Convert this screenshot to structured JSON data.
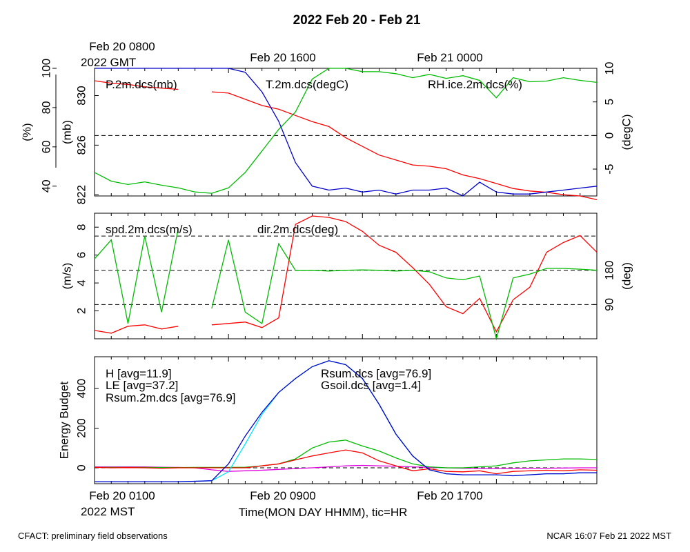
{
  "title": "2022 Feb 20 - Feb 21",
  "top_time_labels": {
    "left_line1": "Feb 20 0800",
    "left_line2": "2022 GMT",
    "mid": "Feb 20 1600",
    "right": "Feb 21 0000"
  },
  "bottom_time_labels": {
    "left_line1": "Feb 20 0100",
    "left_line2": "2022 MST",
    "mid": "Feb 20 0900",
    "right": "Feb 20 1700"
  },
  "xlabel": "Time(MON DAY HHMM), tic=HR",
  "footer_left": "CFACT: preliminary field observations",
  "footer_right": "NCAR 16:07 Feb 21 2022 MST",
  "colors": {
    "red": "#ff0000",
    "green": "#00bb00",
    "blue": "#0000cc",
    "cyan": "#00e5ff",
    "magenta": "#dd00dd",
    "dashed": "#000000"
  },
  "chart_data": [
    {
      "type": "line",
      "panel": "top",
      "x_hours_mst": [
        1,
        2,
        3,
        4,
        5,
        6,
        7,
        8,
        9,
        10,
        11,
        12,
        13,
        14,
        15,
        16,
        17,
        18,
        19,
        20,
        21,
        22,
        23,
        24,
        25,
        26,
        27,
        28,
        29,
        30,
        31
      ],
      "series": [
        {
          "name": "P.2m.dcs(mb)",
          "color": "red",
          "axis": "mb",
          "values": [
            831.2,
            831.0,
            830.9,
            830.7,
            830.6,
            830.5,
            null,
            830.3,
            830.2,
            829.7,
            829.2,
            828.9,
            828.4,
            827.9,
            827.5,
            826.6,
            825.9,
            825.2,
            824.8,
            824.4,
            824.3,
            824.1,
            823.6,
            823.3,
            822.9,
            822.5,
            822.3,
            822.2,
            822.0,
            821.9,
            821.6
          ]
        },
        {
          "name": "T.2m.dcs(degC)",
          "color": "green",
          "axis": "degC",
          "values": [
            -5.5,
            -6.8,
            -7.3,
            -6.9,
            -7.4,
            -7.8,
            -8.4,
            -8.6,
            -7.8,
            -5.5,
            -2.3,
            0.9,
            3.5,
            8.4,
            10.0,
            10.0,
            9.5,
            9.5,
            9.2,
            8.6,
            9.1,
            8.5,
            8.9,
            8.2,
            5.6,
            8.6,
            8.0,
            8.1,
            8.6,
            8.2,
            7.9
          ]
        },
        {
          "name": "RH.ice.2m.dcs(%)",
          "color": "blue",
          "axis": "pct",
          "values": [
            100,
            100,
            100,
            100,
            100,
            100,
            100,
            100,
            100,
            98,
            88,
            73,
            52,
            40,
            38,
            39,
            37,
            38,
            36,
            38,
            38,
            39,
            35,
            42,
            37,
            36,
            36,
            37,
            38,
            39,
            40
          ]
        }
      ],
      "y_axes": {
        "pct": {
          "label": "(%)",
          "ticks": [
            40,
            60,
            80,
            100
          ],
          "ylim": [
            35,
            100
          ]
        },
        "mb": {
          "label": "(mb)",
          "ticks": [
            822,
            826,
            830
          ],
          "ylim": [
            821.9,
            832.2
          ]
        },
        "degC": {
          "label": "(degC)",
          "ticks": [
            -5,
            0,
            5,
            10
          ],
          "ylim": [
            -9,
            10
          ]
        }
      },
      "reference_line": {
        "axis": "degC",
        "value": 0
      }
    },
    {
      "type": "line",
      "panel": "middle",
      "x_hours_mst": [
        1,
        2,
        3,
        4,
        5,
        6,
        7,
        8,
        9,
        10,
        11,
        12,
        13,
        14,
        15,
        16,
        17,
        18,
        19,
        20,
        21,
        22,
        23,
        24,
        25,
        26,
        27,
        28,
        29,
        30,
        31
      ],
      "series": [
        {
          "name": "spd.2m.dcs(m/s)",
          "color": "red",
          "axis": "ms",
          "values": [
            0.6,
            0.4,
            0.9,
            1.0,
            0.7,
            0.9,
            null,
            1.0,
            1.1,
            1.2,
            0.8,
            1.5,
            8.2,
            8.8,
            8.7,
            8.4,
            7.7,
            6.7,
            6.2,
            5.1,
            3.9,
            2.3,
            1.8,
            2.9,
            0.5,
            2.8,
            3.7,
            6.2,
            6.9,
            7.4,
            6.2
          ]
        },
        {
          "name": "dir.2m.dcs(deg)",
          "color": "green",
          "axis": "deg",
          "values": [
            210,
            260,
            40,
            270,
            70,
            290,
            null,
            80,
            260,
            70,
            40,
            250,
            180,
            180,
            178,
            180,
            181,
            180,
            178,
            180,
            176,
            160,
            155,
            165,
            0,
            160,
            170,
            185,
            185,
            183,
            180
          ]
        }
      ],
      "y_axes": {
        "ms": {
          "label": "(m/s)",
          "ticks": [
            2,
            4,
            6,
            8
          ],
          "ylim": [
            0,
            9
          ]
        },
        "deg": {
          "label": "(deg)",
          "ticks": [
            90,
            180
          ],
          "ylim": [
            0,
            330
          ]
        }
      },
      "reference_lines": [
        {
          "axis": "deg",
          "value": 90
        },
        {
          "axis": "deg",
          "value": 180
        },
        {
          "axis": "deg",
          "value": 270
        }
      ]
    },
    {
      "type": "line",
      "panel": "bottom",
      "ylabel": "Energy Budget",
      "ylim": [
        -80,
        560
      ],
      "yticks": [
        0,
        200,
        400
      ],
      "reference_line": {
        "value": 0
      },
      "x_hours_mst": [
        1,
        2,
        3,
        4,
        5,
        6,
        7,
        8,
        9,
        10,
        11,
        12,
        13,
        14,
        15,
        16,
        17,
        18,
        19,
        20,
        21,
        22,
        23,
        24,
        25,
        26,
        27,
        28,
        29,
        30,
        31
      ],
      "series": [
        {
          "name": "H",
          "legend": "H [avg=11.9]",
          "color": "red",
          "values": [
            2,
            0,
            1,
            0,
            -2,
            0,
            0,
            0,
            0,
            0,
            10,
            20,
            40,
            60,
            75,
            90,
            75,
            35,
            10,
            -15,
            -5,
            -18,
            -20,
            -15,
            -30,
            -18,
            -15,
            -12,
            -15,
            -10,
            -12
          ]
        },
        {
          "name": "LE",
          "legend": "LE [avg=37.2]",
          "color": "green",
          "values": [
            2,
            2,
            2,
            2,
            1,
            1,
            2,
            2,
            2,
            3,
            10,
            20,
            45,
            100,
            130,
            140,
            110,
            85,
            50,
            20,
            5,
            0,
            0,
            5,
            10,
            25,
            35,
            40,
            45,
            45,
            42
          ]
        },
        {
          "name": "Rsum.2m.dcs",
          "legend": "Rsum.2m.dcs [avg=76.9]",
          "color": "blue",
          "values": [
            -70,
            -70,
            -70,
            -70,
            -70,
            -70,
            -68,
            -65,
            20,
            160,
            280,
            380,
            450,
            510,
            540,
            520,
            450,
            320,
            170,
            60,
            -10,
            -30,
            -35,
            -35,
            -35,
            -40,
            -35,
            -30,
            -30,
            -25,
            -25
          ]
        },
        {
          "name": "Rsum.dcs",
          "legend": "Rsum.dcs [avg=76.9]",
          "color": "cyan",
          "values": [
            -70,
            -70,
            -70,
            -70,
            -70,
            -70,
            -68,
            -65,
            -20,
            120,
            270,
            380,
            450,
            510,
            540,
            520,
            450,
            320,
            170,
            60,
            -10,
            -30,
            -35,
            -35,
            -35,
            -40,
            -35,
            -30,
            -30,
            -25,
            -25
          ]
        },
        {
          "name": "Gsoil.dcs",
          "legend": "Gsoil.dcs [avg=1.4]",
          "color": "magenta",
          "values": [
            5,
            5,
            5,
            5,
            3,
            2,
            0,
            -10,
            -18,
            -15,
            -12,
            -8,
            -4,
            0,
            5,
            10,
            12,
            10,
            8,
            5,
            2,
            0,
            -2,
            -3,
            -3,
            -3,
            -2,
            -2,
            -1,
            0,
            0
          ]
        }
      ]
    }
  ]
}
